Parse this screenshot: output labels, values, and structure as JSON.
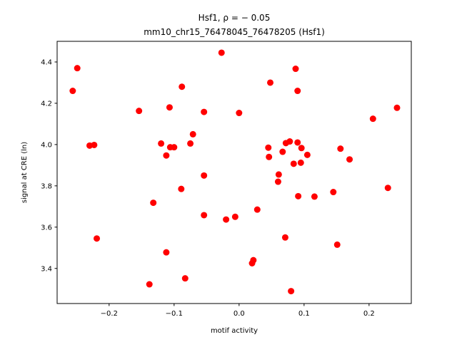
{
  "chart_data": {
    "type": "scatter",
    "title_line1": "Hsf1, ρ = − 0.05",
    "title_line2": "mm10_chr15_76478045_76478205 (Hsf1)",
    "xlabel": "motif activity",
    "ylabel": "signal at CRE (ln)",
    "xlim": [
      -0.28,
      0.265
    ],
    "ylim": [
      3.23,
      4.5
    ],
    "xticks": [
      -0.2,
      -0.1,
      0.0,
      0.1,
      0.2
    ],
    "xtick_labels": [
      "−0.2",
      "−0.1",
      "0.0",
      "0.1",
      "0.2"
    ],
    "yticks": [
      3.4,
      3.6,
      3.8,
      4.0,
      4.2,
      4.4
    ],
    "ytick_labels": [
      "3.4",
      "3.6",
      "3.8",
      "4.0",
      "4.2",
      "4.4"
    ],
    "grid": false,
    "marker_color": "#ff0000",
    "points": [
      {
        "x": -0.256,
        "y": 4.26
      },
      {
        "x": -0.249,
        "y": 4.37
      },
      {
        "x": -0.23,
        "y": 3.995
      },
      {
        "x": -0.223,
        "y": 3.998
      },
      {
        "x": -0.219,
        "y": 3.545
      },
      {
        "x": -0.154,
        "y": 4.163
      },
      {
        "x": -0.138,
        "y": 3.323
      },
      {
        "x": -0.132,
        "y": 3.718
      },
      {
        "x": -0.12,
        "y": 4.005
      },
      {
        "x": -0.112,
        "y": 3.478
      },
      {
        "x": -0.112,
        "y": 3.947
      },
      {
        "x": -0.107,
        "y": 4.18
      },
      {
        "x": -0.106,
        "y": 3.987
      },
      {
        "x": -0.1,
        "y": 3.987
      },
      {
        "x": -0.089,
        "y": 3.785
      },
      {
        "x": -0.088,
        "y": 4.28
      },
      {
        "x": -0.083,
        "y": 3.352
      },
      {
        "x": -0.075,
        "y": 4.005
      },
      {
        "x": -0.071,
        "y": 4.05
      },
      {
        "x": -0.054,
        "y": 4.158
      },
      {
        "x": -0.054,
        "y": 3.85
      },
      {
        "x": -0.054,
        "y": 3.658
      },
      {
        "x": -0.027,
        "y": 4.445
      },
      {
        "x": -0.02,
        "y": 3.637
      },
      {
        "x": -0.006,
        "y": 3.65
      },
      {
        "x": 0.0,
        "y": 4.153
      },
      {
        "x": 0.02,
        "y": 3.425
      },
      {
        "x": 0.022,
        "y": 3.44
      },
      {
        "x": 0.028,
        "y": 3.685
      },
      {
        "x": 0.045,
        "y": 3.985
      },
      {
        "x": 0.046,
        "y": 3.94
      },
      {
        "x": 0.048,
        "y": 4.3
      },
      {
        "x": 0.06,
        "y": 3.82
      },
      {
        "x": 0.061,
        "y": 3.855
      },
      {
        "x": 0.067,
        "y": 3.965
      },
      {
        "x": 0.071,
        "y": 3.55
      },
      {
        "x": 0.072,
        "y": 4.007
      },
      {
        "x": 0.078,
        "y": 4.015
      },
      {
        "x": 0.08,
        "y": 3.29
      },
      {
        "x": 0.084,
        "y": 3.907
      },
      {
        "x": 0.087,
        "y": 4.367
      },
      {
        "x": 0.09,
        "y": 4.26
      },
      {
        "x": 0.09,
        "y": 4.01
      },
      {
        "x": 0.091,
        "y": 3.75
      },
      {
        "x": 0.095,
        "y": 3.912
      },
      {
        "x": 0.096,
        "y": 3.983
      },
      {
        "x": 0.105,
        "y": 3.95
      },
      {
        "x": 0.116,
        "y": 3.748
      },
      {
        "x": 0.145,
        "y": 3.77
      },
      {
        "x": 0.151,
        "y": 3.515
      },
      {
        "x": 0.156,
        "y": 3.98
      },
      {
        "x": 0.17,
        "y": 3.928
      },
      {
        "x": 0.206,
        "y": 4.125
      },
      {
        "x": 0.229,
        "y": 3.79
      },
      {
        "x": 0.243,
        "y": 4.178
      }
    ]
  }
}
